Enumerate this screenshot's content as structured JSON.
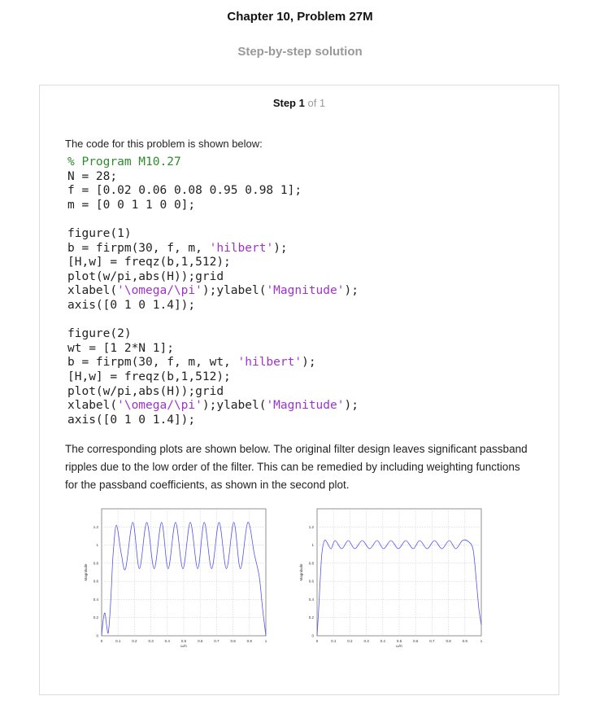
{
  "header": {
    "title": "Chapter 10, Problem 27M",
    "subtitle": "Step-by-step solution"
  },
  "step": {
    "label": "Step 1",
    "of": "of 1"
  },
  "intro": "The code for this problem is shown below:",
  "code": {
    "l1": "% Program M10.27",
    "l2": "N = 28;",
    "l3": "f = [0.02 0.06 0.08 0.95 0.98 1];",
    "l4": "m = [0 0 1 1 0 0];",
    "l5": "figure(1)",
    "l6a": "b = firpm(30, f, m, ",
    "l6s": "'hilbert'",
    "l6b": ");",
    "l7": "[H,w] = freqz(b,1,512);",
    "l8": "plot(w/pi,abs(H));grid",
    "l9a": "xlabel(",
    "l9s1": "'\\omega/\\pi'",
    "l9b": ");ylabel(",
    "l9s2": "'Magnitude'",
    "l9c": ");",
    "l10": "axis([0 1 0 1.4]);",
    "l11": "figure(2)",
    "l12": "wt = [1 2*N 1];",
    "l13a": "b = firpm(30, f, m, wt, ",
    "l13s": "'hilbert'",
    "l13b": ");",
    "l14": "[H,w] = freqz(b,1,512);",
    "l15": "plot(w/pi,abs(H));grid",
    "l16a": "xlabel(",
    "l16s1": "'\\omega/\\pi'",
    "l16b": ");ylabel(",
    "l16s2": "'Magnitude'",
    "l16c": ");",
    "l17": "axis([0 1 0 1.4]);"
  },
  "paragraph": "The corresponding plots are shown below. The original filter design leaves significant passband ripples due to the low order of the filter. This can be remedied by including weighting functions for the passband coefficients, as shown in the second plot.",
  "colors": {
    "line": "#5555ee",
    "comment": "#2e8b2e",
    "string": "#9f32cf"
  },
  "chart_data": [
    {
      "type": "line",
      "xlabel": "ω/π",
      "ylabel": "Magnitude",
      "xlim": [
        0,
        1
      ],
      "ylim": [
        0,
        1.4
      ],
      "xticks": [
        "0",
        "0.1",
        "0.2",
        "0.3",
        "0.4",
        "0.5",
        "0.6",
        "0.7",
        "0.8",
        "0.9",
        "1"
      ],
      "yticks": [
        "0",
        "0.2",
        "0.4",
        "0.6",
        "0.8",
        "1",
        "1.2"
      ],
      "grid": true,
      "series": [
        {
          "x": [
            0,
            0.01,
            0.02,
            0.03,
            0.04,
            0.05,
            0.06,
            0.07,
            0.09,
            0.12,
            0.146,
            0.19,
            0.23,
            0.275,
            0.32,
            0.365,
            0.405,
            0.45,
            0.495,
            0.54,
            0.585,
            0.625,
            0.67,
            0.715,
            0.76,
            0.805,
            0.845,
            0.89,
            0.93,
            0.96,
            0.98,
            1.0
          ],
          "y": [
            0,
            0.18,
            0.25,
            0.12,
            0.03,
            0.22,
            0.55,
            0.9,
            1.22,
            0.9,
            0.74,
            1.25,
            0.74,
            1.25,
            0.74,
            1.25,
            0.74,
            1.25,
            0.74,
            1.25,
            0.74,
            1.25,
            0.74,
            1.25,
            0.74,
            1.25,
            0.74,
            1.25,
            0.9,
            0.65,
            0.3,
            0
          ]
        }
      ]
    },
    {
      "type": "line",
      "xlabel": "ω/π",
      "ylabel": "Magnitude",
      "xlim": [
        0,
        1
      ],
      "ylim": [
        0,
        1.4
      ],
      "xticks": [
        "0",
        "0.1",
        "0.2",
        "0.3",
        "0.4",
        "0.5",
        "0.6",
        "0.7",
        "0.8",
        "0.9",
        "1"
      ],
      "yticks": [
        "0",
        "0.2",
        "0.4",
        "0.6",
        "0.8",
        "1",
        "1.2"
      ],
      "grid": true,
      "series": [
        {
          "x": [
            0,
            0.01,
            0.02,
            0.03,
            0.045,
            0.06,
            0.085,
            0.11,
            0.15,
            0.19,
            0.23,
            0.275,
            0.32,
            0.365,
            0.405,
            0.45,
            0.495,
            0.54,
            0.585,
            0.625,
            0.67,
            0.715,
            0.76,
            0.805,
            0.845,
            0.885,
            0.92,
            0.95,
            0.97,
            0.985,
            1.0
          ],
          "y": [
            0,
            0.3,
            0.65,
            0.92,
            1.05,
            1.03,
            0.96,
            1.05,
            0.96,
            1.05,
            0.96,
            1.05,
            0.96,
            1.05,
            0.96,
            1.05,
            0.96,
            1.05,
            0.96,
            1.05,
            0.96,
            1.05,
            0.96,
            1.05,
            0.96,
            1.05,
            1.04,
            0.95,
            0.6,
            0.3,
            0.12
          ]
        }
      ]
    }
  ]
}
